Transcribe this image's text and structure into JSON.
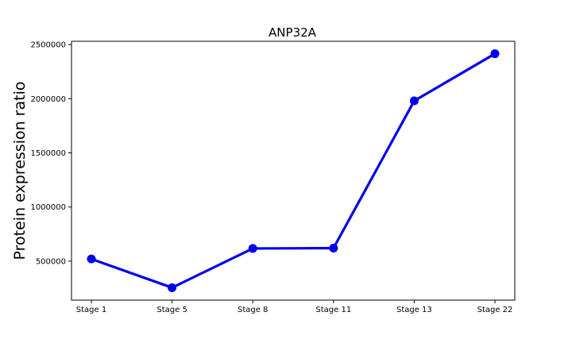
{
  "chart_data": {
    "type": "line",
    "title": "ANP32A",
    "xlabel": "",
    "ylabel": "Protein expression ratio",
    "categories": [
      "Stage 1",
      "Stage 5",
      "Stage 8",
      "Stage 11",
      "Stage 13",
      "Stage 22"
    ],
    "series": [
      {
        "values": [
          520000,
          255000,
          617000,
          620000,
          1980000,
          2415000
        ],
        "color": "#0000ee"
      }
    ],
    "ylim": [
      140000,
      2530000
    ],
    "yticks": [
      500000,
      1000000,
      1500000,
      2000000,
      2500000
    ],
    "ytick_labels": [
      "500000",
      "1000000",
      "1500000",
      "2000000",
      "2500000"
    ],
    "grid": false,
    "legend": "none"
  }
}
